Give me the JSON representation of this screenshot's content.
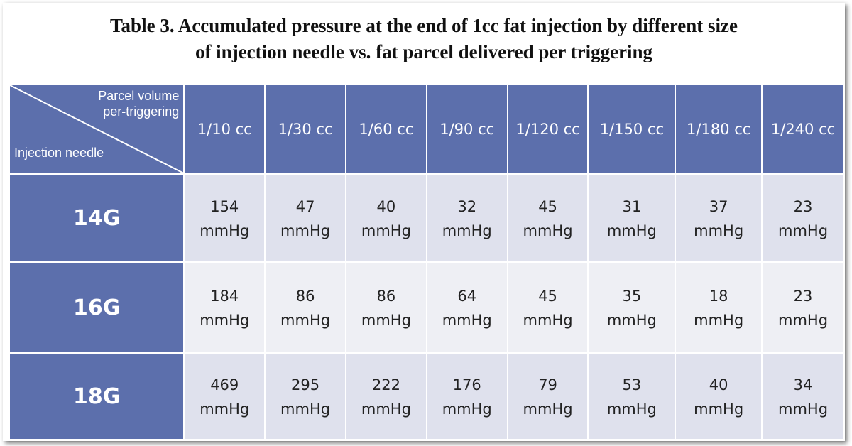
{
  "title": {
    "line1": "Table 3. Accumulated pressure at the end of 1cc fat injection by different  size",
    "line2": "of injection needle vs. fat parcel delivered per triggering"
  },
  "header": {
    "corner_top_line1": "Parcel volume",
    "corner_top_line2": "per-triggering",
    "corner_bottom": "Injection needle",
    "columns": [
      "1/10 cc",
      "1/30 cc",
      "1/60 cc",
      "1/90 cc",
      "1/120 cc",
      "1/150 cc",
      "1/180 cc",
      "1/240 cc"
    ]
  },
  "unit": "mmHg",
  "rows": [
    {
      "needle": "14G",
      "values": [
        "154",
        "47",
        "40",
        "32",
        "45",
        "31",
        "37",
        "23"
      ]
    },
    {
      "needle": "16G",
      "values": [
        "184",
        "86",
        "86",
        "64",
        "45",
        "35",
        "18",
        "23"
      ]
    },
    {
      "needle": "18G",
      "values": [
        "469",
        "295",
        "222",
        "176",
        "79",
        "53",
        "40",
        "34"
      ]
    }
  ]
}
